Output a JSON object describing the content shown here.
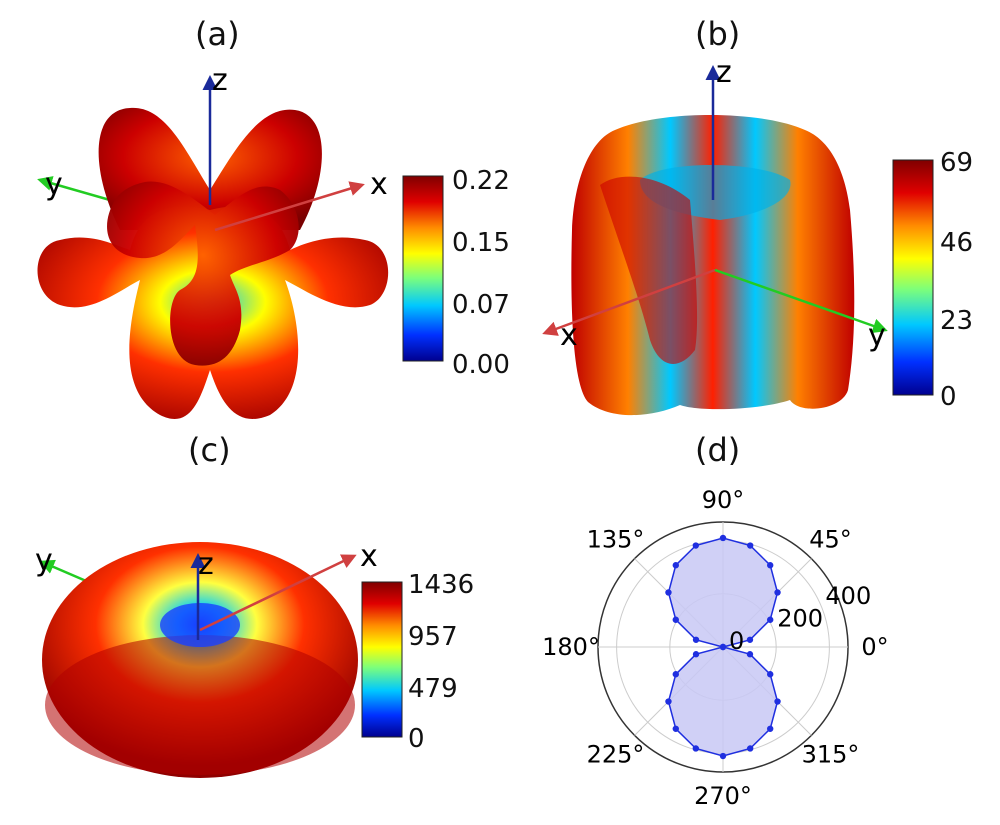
{
  "panels": [
    {
      "label": "(a)",
      "axes": {
        "x": "x",
        "y": "y",
        "z": "z"
      },
      "colorbar": {
        "ticks": [
          "0.22",
          "0.15",
          "0.07",
          "0.00"
        ]
      }
    },
    {
      "label": "(b)",
      "axes": {
        "x": "x",
        "y": "y",
        "z": "z"
      },
      "colorbar": {
        "ticks": [
          "69",
          "46",
          "23",
          "0"
        ]
      }
    },
    {
      "label": "(c)",
      "axes": {
        "x": "x",
        "y": "y",
        "z": "z"
      },
      "colorbar": {
        "ticks": [
          "1436",
          "957",
          "479",
          "0"
        ]
      }
    },
    {
      "label": "(d)"
    }
  ],
  "colors": {
    "colormap": [
      "#00008f",
      "#0030ff",
      "#00c8ff",
      "#7dff7a",
      "#ffff00",
      "#ff8c00",
      "#e00000",
      "#800000"
    ],
    "x_axis": "#d04040",
    "y_axis": "#22cc22",
    "z_axis": "#1a2a9a",
    "polar_fill": "#c8c8f4",
    "polar_line": "#1f2fe0"
  },
  "chart_data": [
    {
      "type": "surface3d",
      "panel": "(a)",
      "colorbar_range": [
        0.0,
        0.22
      ],
      "colorbar_ticks": [
        0.0,
        0.07,
        0.15,
        0.22
      ]
    },
    {
      "type": "surface3d",
      "panel": "(b)",
      "colorbar_range": [
        0,
        69
      ],
      "colorbar_ticks": [
        0,
        23,
        46,
        69
      ]
    },
    {
      "type": "surface3d",
      "panel": "(c)",
      "colorbar_range": [
        0,
        1436
      ],
      "colorbar_ticks": [
        0,
        479,
        957,
        1436
      ]
    },
    {
      "type": "polar",
      "panel": "(d)",
      "angle_ticks": [
        "0°",
        "45°",
        "90°",
        "135°",
        "180°",
        "225°",
        "270°",
        "315°"
      ],
      "radial_ticks": [
        "0",
        "200",
        "400"
      ],
      "r_max": 470,
      "series": [
        {
          "theta_deg": [
            0,
            15,
            30,
            45,
            60,
            75,
            90,
            105,
            120,
            135,
            150,
            165,
            180,
            195,
            210,
            225,
            240,
            255,
            270,
            285,
            300,
            315,
            330,
            345
          ],
          "r": [
            0,
            105,
            205,
            290,
            355,
            395,
            410,
            395,
            355,
            290,
            205,
            105,
            0,
            105,
            205,
            290,
            355,
            395,
            410,
            395,
            355,
            290,
            205,
            105
          ]
        }
      ]
    }
  ]
}
